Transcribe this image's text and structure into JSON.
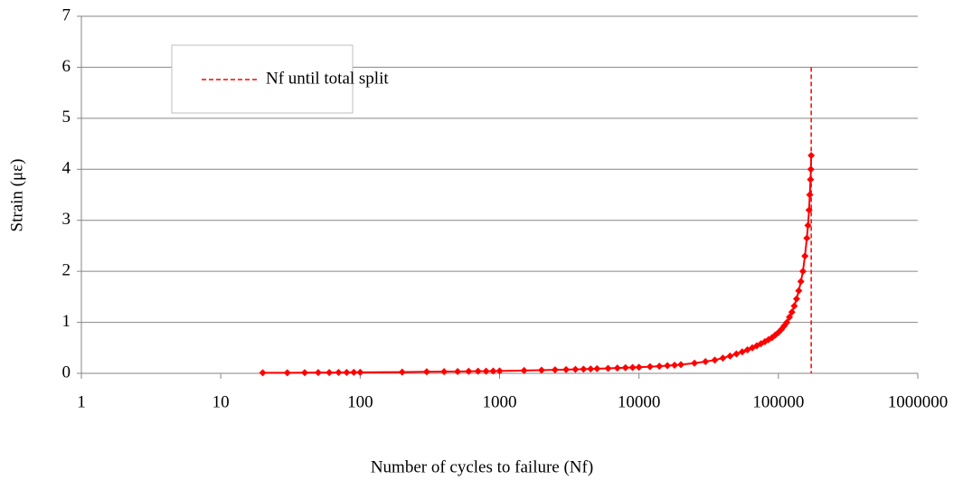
{
  "chart_data": {
    "type": "line",
    "xlabel": "Number of cycles to failure (Nf)",
    "ylabel": "Strain (με)",
    "xscale": "log",
    "xlim": [
      1,
      1000000
    ],
    "xticks": [
      1,
      10,
      100,
      1000,
      10000,
      100000,
      1000000
    ],
    "ylim": [
      0,
      7
    ],
    "yticks": [
      0,
      1,
      2,
      3,
      4,
      5,
      6,
      7
    ],
    "grid": true,
    "legend": "upper left",
    "series": [
      {
        "color": "#ff0000",
        "marker": "diamond",
        "x": [
          20,
          30,
          40,
          50,
          60,
          70,
          80,
          90,
          100,
          200,
          300,
          400,
          500,
          600,
          700,
          800,
          900,
          1000,
          1500,
          2000,
          2500,
          3000,
          3500,
          4000,
          4500,
          5000,
          6000,
          7000,
          8000,
          9000,
          10000,
          12000,
          14000,
          16000,
          18000,
          20000,
          25000,
          30000,
          35000,
          40000,
          45000,
          50000,
          55000,
          60000,
          65000,
          70000,
          75000,
          80000,
          85000,
          90000,
          95000,
          100000,
          105000,
          110000,
          115000,
          120000,
          125000,
          130000,
          135000,
          140000,
          145000,
          150000,
          155000,
          160000,
          163000,
          166000,
          168000,
          170000,
          171000,
          172000
        ],
        "values": [
          0.01,
          0.012,
          0.014,
          0.015,
          0.016,
          0.017,
          0.018,
          0.019,
          0.02,
          0.025,
          0.03,
          0.033,
          0.036,
          0.039,
          0.041,
          0.043,
          0.045,
          0.047,
          0.055,
          0.062,
          0.068,
          0.073,
          0.078,
          0.082,
          0.086,
          0.09,
          0.097,
          0.104,
          0.11,
          0.116,
          0.12,
          0.13,
          0.14,
          0.15,
          0.16,
          0.17,
          0.2,
          0.23,
          0.26,
          0.3,
          0.34,
          0.38,
          0.42,
          0.46,
          0.5,
          0.54,
          0.58,
          0.62,
          0.66,
          0.7,
          0.75,
          0.8,
          0.86,
          0.93,
          1.0,
          1.1,
          1.2,
          1.32,
          1.46,
          1.62,
          1.8,
          2.0,
          2.3,
          2.65,
          2.9,
          3.2,
          3.5,
          3.8,
          4.0,
          4.27
        ]
      }
    ],
    "vline": {
      "name": "Nf until total split",
      "value": 172000,
      "color": "#ff0000",
      "style": "dashed"
    }
  }
}
